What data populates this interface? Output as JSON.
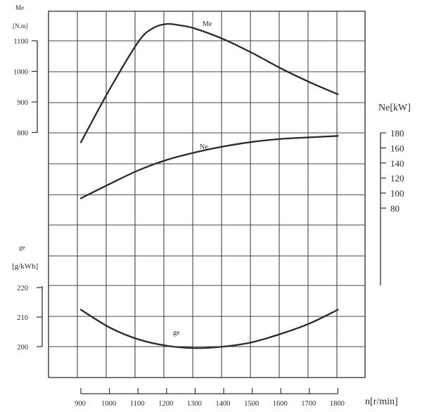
{
  "chart_data": {
    "type": "line",
    "x_axis": {
      "label": "n[r/min]",
      "ticks": [
        900,
        1000,
        1100,
        1200,
        1300,
        1400,
        1500,
        1600,
        1700,
        1800
      ],
      "range": [
        900,
        1800
      ]
    },
    "axes": {
      "Me": {
        "label_top": "Me",
        "label_unit": "[N.m]",
        "ticks": [
          800,
          900,
          1000,
          1100
        ],
        "side": "left"
      },
      "Ne": {
        "label": "Ne[kW]",
        "ticks": [
          80,
          100,
          120,
          140,
          160,
          180
        ],
        "side": "right"
      },
      "ge": {
        "label_top": "ge",
        "label_unit": "[g/kWh]",
        "ticks": [
          200,
          210,
          220
        ],
        "side": "left"
      }
    },
    "series": [
      {
        "name": "Me",
        "axis": "Me",
        "x": [
          900,
          1000,
          1100,
          1150,
          1200,
          1250,
          1300,
          1400,
          1500,
          1600,
          1700,
          1800
        ],
        "y": [
          768,
          940,
          1095,
          1140,
          1155,
          1150,
          1140,
          1105,
          1060,
          1010,
          965,
          925
        ]
      },
      {
        "name": "Ne",
        "axis": "Ne",
        "x": [
          900,
          1000,
          1100,
          1200,
          1300,
          1400,
          1500,
          1600,
          1700,
          1800
        ],
        "y": [
          93,
          112,
          130,
          144,
          154,
          162,
          168,
          172,
          174,
          176
        ]
      },
      {
        "name": "ge",
        "axis": "ge",
        "x": [
          900,
          1000,
          1100,
          1200,
          1300,
          1400,
          1500,
          1600,
          1700,
          1800
        ],
        "y": [
          212.5,
          206.5,
          202.5,
          200.3,
          199.5,
          200.0,
          201.5,
          204.3,
          207.8,
          212.5
        ]
      }
    ],
    "grid": true
  }
}
